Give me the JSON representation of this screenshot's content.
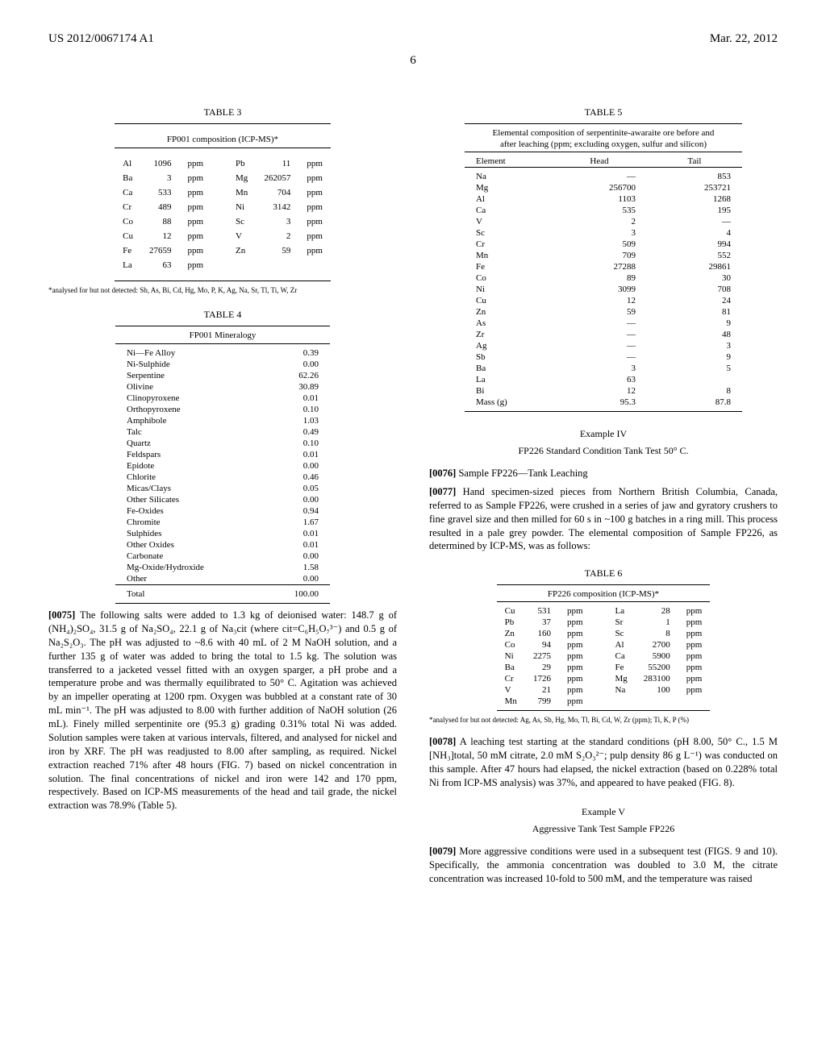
{
  "header": {
    "pub_number": "US 2012/0067174 A1",
    "pub_date": "Mar. 22, 2012",
    "page_number": "6"
  },
  "left": {
    "table3": {
      "label": "TABLE 3",
      "caption": "FP001 composition (ICP-MS)*",
      "rows": [
        [
          "Al",
          "1096",
          "ppm",
          "Pb",
          "11",
          "ppm"
        ],
        [
          "Ba",
          "3",
          "ppm",
          "Mg",
          "262057",
          "ppm"
        ],
        [
          "Ca",
          "533",
          "ppm",
          "Mn",
          "704",
          "ppm"
        ],
        [
          "Cr",
          "489",
          "ppm",
          "Ni",
          "3142",
          "ppm"
        ],
        [
          "Co",
          "88",
          "ppm",
          "Sc",
          "3",
          "ppm"
        ],
        [
          "Cu",
          "12",
          "ppm",
          "V",
          "2",
          "ppm"
        ],
        [
          "Fe",
          "27659",
          "ppm",
          "Zn",
          "59",
          "ppm"
        ],
        [
          "La",
          "63",
          "ppm",
          "",
          "",
          ""
        ]
      ],
      "footnote": "*analysed for but not detected: Sb, As, Bi, Cd, Hg, Mo, P, K, Ag, Na, Sr, Tl, Ti, W, Zr"
    },
    "table4": {
      "label": "TABLE 4",
      "caption": "FP001 Mineralogy",
      "rows": [
        [
          "Ni—Fe Alloy",
          "0.39"
        ],
        [
          "Ni-Sulphide",
          "0.00"
        ],
        [
          "Serpentine",
          "62.26"
        ],
        [
          "Olivine",
          "30.89"
        ],
        [
          "Clinopyroxene",
          "0.01"
        ],
        [
          "Orthopyroxene",
          "0.10"
        ],
        [
          "Amphibole",
          "1.03"
        ],
        [
          "Talc",
          "0.49"
        ],
        [
          "Quartz",
          "0.10"
        ],
        [
          "Feldspars",
          "0.01"
        ],
        [
          "Epidote",
          "0.00"
        ],
        [
          "Chlorite",
          "0.46"
        ],
        [
          "Micas/Clays",
          "0.05"
        ],
        [
          "Other Silicates",
          "0.00"
        ],
        [
          "Fe-Oxides",
          "0.94"
        ],
        [
          "Chromite",
          "1.67"
        ],
        [
          "Sulphides",
          "0.01"
        ],
        [
          "Other Oxides",
          "0.01"
        ],
        [
          "Carbonate",
          "0.00"
        ],
        [
          "Mg-Oxide/Hydroxide",
          "1.58"
        ],
        [
          "Other",
          "0.00"
        ]
      ],
      "total_row": [
        "Total",
        "100.00"
      ]
    },
    "para75_num": "[0075]",
    "para75": "   The following salts were added to 1.3 kg of deionised water: 148.7 g of (NH₄)₂SO₄, 31.5 g of Na₂SO₄, 22.1 g of Na₃cit (where cit=C₆H₅O₇³⁻) and 0.5 g of Na₂S₂O₃. The pH was adjusted to ~8.6 with 40 mL of 2 M NaOH solution, and a further 135 g of water was added to bring the total to 1.5 kg. The solution was transferred to a jacketed vessel fitted with an oxygen sparger, a pH probe and a temperature probe and was thermally equilibrated to 50° C. Agitation was achieved by an impeller operating at 1200 rpm. Oxygen was bubbled at a constant rate of 30 mL min⁻¹. The pH was adjusted to 8.00 with further addition of NaOH solution (26 mL). Finely milled serpentinite ore (95.3 g) grading 0.31% total Ni was added. Solution samples were taken at various intervals, filtered, and analysed for nickel and iron by XRF. The pH was readjusted to 8.00 after sampling, as required. Nickel extraction reached 71% after 48 hours (FIG. 7) based on nickel concentration in solution. The final concentrations of nickel and iron were 142 and 170 ppm, respectively. Based on ICP-MS measurements of the head and tail grade, the nickel extraction was 78.9% (Table 5)."
  },
  "right": {
    "table5": {
      "label": "TABLE 5",
      "caption1": "Elemental composition of serpentinite-awaraite ore before and",
      "caption2": "after leaching (ppm; excluding oxygen, sulfur and silicon)",
      "header": [
        "Element",
        "Head",
        "Tail"
      ],
      "rows": [
        [
          "Na",
          "—",
          "853"
        ],
        [
          "Mg",
          "256700",
          "253721"
        ],
        [
          "Al",
          "1103",
          "1268"
        ],
        [
          "Ca",
          "535",
          "195"
        ],
        [
          "V",
          "2",
          "—"
        ],
        [
          "Sc",
          "3",
          "4"
        ],
        [
          "Cr",
          "509",
          "994"
        ],
        [
          "Mn",
          "709",
          "552"
        ],
        [
          "Fe",
          "27288",
          "29861"
        ],
        [
          "Co",
          "89",
          "30"
        ],
        [
          "Ni",
          "3099",
          "708"
        ],
        [
          "Cu",
          "12",
          "24"
        ],
        [
          "Zn",
          "59",
          "81"
        ],
        [
          "As",
          "—",
          "9"
        ],
        [
          "Zr",
          "—",
          "48"
        ],
        [
          "Ag",
          "—",
          "3"
        ],
        [
          "Sb",
          "—",
          "9"
        ],
        [
          "Ba",
          "3",
          "5"
        ],
        [
          "La",
          "63",
          ""
        ],
        [
          "Bi",
          "12",
          "8"
        ],
        [
          "Mass (g)",
          "95.3",
          "87.8"
        ]
      ]
    },
    "example4": {
      "title": "Example IV",
      "subtitle": "FP226 Standard Condition Tank Test 50° C."
    },
    "para76_num": "[0076]",
    "para76": "   Sample FP226—Tank Leaching",
    "para77_num": "[0077]",
    "para77": "   Hand specimen-sized pieces from Northern British Columbia, Canada, referred to as Sample FP226, were crushed in a series of jaw and gyratory crushers to fine gravel size and then milled for 60 s in ~100 g batches in a ring mill. This process resulted in a pale grey powder. The elemental composition of Sample FP226, as determined by ICP-MS, was as follows:",
    "table6": {
      "label": "TABLE 6",
      "caption": "FP226 composition (ICP-MS)*",
      "rows": [
        [
          "Cu",
          "531",
          "ppm",
          "La",
          "28",
          "ppm"
        ],
        [
          "Pb",
          "37",
          "ppm",
          "Sr",
          "1",
          "ppm"
        ],
        [
          "Zn",
          "160",
          "ppm",
          "Sc",
          "8",
          "ppm"
        ],
        [
          "Co",
          "94",
          "ppm",
          "Al",
          "2700",
          "ppm"
        ],
        [
          "Ni",
          "2275",
          "ppm",
          "Ca",
          "5900",
          "ppm"
        ],
        [
          "Ba",
          "29",
          "ppm",
          "Fe",
          "55200",
          "ppm"
        ],
        [
          "Cr",
          "1726",
          "ppm",
          "Mg",
          "283100",
          "ppm"
        ],
        [
          "V",
          "21",
          "ppm",
          "Na",
          "100",
          "ppm"
        ],
        [
          "Mn",
          "799",
          "ppm",
          "",
          "",
          ""
        ]
      ],
      "footnote": "*analysed for but not detected: Ag, As, Sb, Hg, Mo, Tl, Bi, Cd, W, Zr (ppm); Ti, K, P (%)"
    },
    "para78_num": "[0078]",
    "para78": "   A leaching test starting at the standard conditions (pH 8.00, 50° C., 1.5 M [NH₃]total, 50 mM citrate, 2.0 mM S₂O₃²⁻; pulp density 86 g L⁻¹) was conducted on this sample. After 47 hours had elapsed, the nickel extraction (based on 0.228% total Ni from ICP-MS analysis) was 37%, and appeared to have peaked (FIG. 8).",
    "example5": {
      "title": "Example V",
      "subtitle": "Aggressive Tank Test Sample FP226"
    },
    "para79_num": "[0079]",
    "para79": "   More aggressive conditions were used in a subsequent test (FIGS. 9 and 10). Specifically, the ammonia concentration was doubled to 3.0 M, the citrate concentration was increased 10-fold to 500 mM, and the temperature was raised"
  }
}
